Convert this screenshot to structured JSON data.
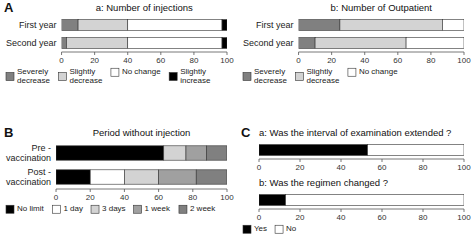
{
  "chart_data": [
    {
      "type": "bar",
      "orientation": "horizontal",
      "stacked": true,
      "legend": "bottom",
      "title": "a: Number of injections",
      "annotations": [
        {
          "text": "A"
        }
      ],
      "categories": [
        "First year",
        "Second year"
      ],
      "series": [
        {
          "name": "Severely\ndecrease",
          "color": "#808080",
          "values": [
            10,
            3
          ]
        },
        {
          "name": "Slightly\ndecrease",
          "color": "#d3d3d3",
          "values": [
            30,
            37
          ]
        },
        {
          "name": "No change",
          "color": "#ffffff",
          "values": [
            57,
            57
          ]
        },
        {
          "name": "Slightly\nincrease",
          "color": "#000000",
          "values": [
            3,
            3
          ]
        }
      ],
      "xlim": [
        0,
        100
      ],
      "xticks": [
        0,
        20,
        40,
        60,
        80,
        100
      ]
    },
    {
      "type": "bar",
      "orientation": "horizontal",
      "stacked": true,
      "legend": "bottom",
      "title": "b: Number of Outpatient",
      "categories": [
        "First year",
        "Second year"
      ],
      "series": [
        {
          "name": "Severely\ndecrease",
          "color": "#808080",
          "values": [
            25,
            10
          ]
        },
        {
          "name": "Slightly\ndecrease",
          "color": "#d3d3d3",
          "values": [
            62,
            55
          ]
        },
        {
          "name": "No change",
          "color": "#ffffff",
          "values": [
            13,
            35
          ]
        }
      ],
      "xlim": [
        0,
        100
      ],
      "xticks": [
        0,
        20,
        40,
        60,
        80,
        100
      ]
    },
    {
      "type": "bar",
      "orientation": "horizontal",
      "stacked": true,
      "legend": "bottom",
      "title": "Period without injection",
      "annotations": [
        {
          "text": "B"
        }
      ],
      "categories": [
        "Pre -\nvaccination",
        "Post -\nvaccination"
      ],
      "series": [
        {
          "name": "No limit",
          "color": "#000000",
          "values": [
            63,
            20
          ]
        },
        {
          "name": "1 day",
          "color": "#ffffff",
          "values": [
            0,
            20
          ]
        },
        {
          "name": "3 days",
          "color": "#d3d3d3",
          "values": [
            13,
            20
          ]
        },
        {
          "name": "1 week",
          "color": "#a0a0a0",
          "values": [
            12,
            22
          ]
        },
        {
          "name": "2 week",
          "color": "#808080",
          "values": [
            12,
            18
          ]
        }
      ],
      "xlim": [
        0,
        100
      ],
      "xticks": [
        0,
        20,
        40,
        60,
        80,
        100
      ]
    },
    {
      "type": "bar",
      "orientation": "horizontal",
      "stacked": true,
      "tick_labels": "x",
      "title": "a: Was the interval of examination extended ?",
      "annotations": [
        {
          "text": "C"
        }
      ],
      "categories": [
        null
      ],
      "series": [
        {
          "color": "#000000",
          "values": [
            53
          ]
        },
        {
          "color": "#ffffff",
          "values": [
            47
          ]
        }
      ],
      "xlim": [
        0,
        100
      ],
      "xticks": [
        0,
        20,
        40,
        60,
        80,
        100
      ]
    },
    {
      "type": "bar",
      "orientation": "horizontal",
      "stacked": true,
      "tick_labels": "x",
      "legend": "bottom",
      "title": "b: Was the regimen changed ?",
      "categories": [
        null
      ],
      "series": [
        {
          "name": "Yes",
          "color": "#000000",
          "values": [
            13
          ]
        },
        {
          "name": "No",
          "color": "#ffffff",
          "values": [
            87
          ]
        }
      ],
      "xlim": [
        0,
        100
      ],
      "xticks": [
        0,
        20,
        40,
        60,
        80,
        100
      ]
    }
  ]
}
